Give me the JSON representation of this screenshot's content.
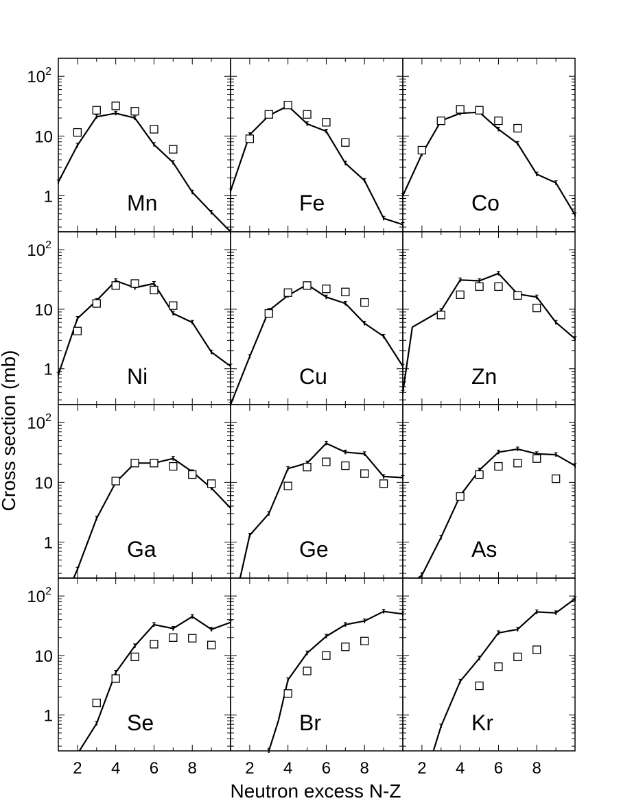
{
  "chart_data": {
    "type": "line",
    "layout": "grid 4 rows x 3 columns, shared axes",
    "xlabel": "Neutron excess N-Z",
    "ylabel": "Cross section (mb)",
    "xlim": [
      1,
      10
    ],
    "ylim": [
      0.25,
      200
    ],
    "yscale": "log",
    "x_ticks": [
      2,
      4,
      6,
      8
    ],
    "y_ticks": [
      {
        "value": 1,
        "label": "1"
      },
      {
        "value": 10,
        "label": "10"
      },
      {
        "value": 100,
        "base": "10",
        "exp": "2"
      }
    ],
    "panels": [
      {
        "element": "Mn",
        "line": [
          [
            1,
            1.7
          ],
          [
            2,
            7
          ],
          [
            3,
            21
          ],
          [
            4,
            24
          ],
          [
            5,
            20
          ],
          [
            6,
            7.2
          ],
          [
            7,
            3.6
          ],
          [
            8,
            1.15
          ],
          [
            9,
            0.53
          ],
          [
            10,
            0.25
          ]
        ],
        "squares": [
          [
            2,
            11.5
          ],
          [
            3,
            27
          ],
          [
            4,
            32
          ],
          [
            5,
            26
          ],
          [
            6,
            13
          ],
          [
            7,
            6
          ]
        ]
      },
      {
        "element": "Fe",
        "line": [
          [
            1,
            1.2
          ],
          [
            2,
            10.5
          ],
          [
            3,
            22
          ],
          [
            4,
            32
          ],
          [
            5,
            16
          ],
          [
            6,
            12
          ],
          [
            7,
            3.5
          ],
          [
            8,
            1.8
          ],
          [
            9,
            0.42
          ],
          [
            10,
            0.33
          ]
        ],
        "squares": [
          [
            2,
            9
          ],
          [
            3,
            23
          ],
          [
            4,
            33
          ],
          [
            5,
            23
          ],
          [
            6,
            17
          ],
          [
            7,
            7.8
          ]
        ]
      },
      {
        "element": "Co",
        "line": [
          [
            1,
            1.0
          ],
          [
            2,
            5
          ],
          [
            3,
            18
          ],
          [
            4,
            24
          ],
          [
            5,
            25
          ],
          [
            6,
            13
          ],
          [
            7,
            7.5
          ],
          [
            8,
            2.3
          ],
          [
            9,
            1.65
          ],
          [
            10,
            0.48
          ]
        ],
        "squares": [
          [
            2,
            5.8
          ],
          [
            3,
            18
          ],
          [
            4,
            28
          ],
          [
            5,
            27
          ],
          [
            6,
            18
          ],
          [
            7,
            13.5
          ]
        ]
      },
      {
        "element": "Ni",
        "line": [
          [
            1,
            0.8
          ],
          [
            2,
            7
          ],
          [
            3,
            14
          ],
          [
            4,
            30
          ],
          [
            5,
            23
          ],
          [
            6,
            27
          ],
          [
            7,
            8.5
          ],
          [
            8,
            6
          ],
          [
            9,
            1.9
          ],
          [
            10,
            1.1
          ]
        ],
        "squares": [
          [
            2,
            4.3
          ],
          [
            3,
            12.5
          ],
          [
            4,
            25
          ],
          [
            5,
            27
          ],
          [
            6,
            21
          ],
          [
            7,
            11.5
          ]
        ]
      },
      {
        "element": "Cu",
        "line": [
          [
            1,
            0.25
          ],
          [
            2,
            1.6
          ],
          [
            3,
            9.5
          ],
          [
            4,
            17
          ],
          [
            5,
            26
          ],
          [
            6,
            16
          ],
          [
            7,
            12.5
          ],
          [
            8,
            5.8
          ],
          [
            9,
            3.5
          ],
          [
            10,
            1.1
          ]
        ],
        "squares": [
          [
            3,
            8.5
          ],
          [
            4,
            19
          ],
          [
            5,
            25
          ],
          [
            6,
            22
          ],
          [
            7,
            19.5
          ],
          [
            8,
            13
          ]
        ]
      },
      {
        "element": "Zn",
        "line": [
          [
            1,
            0.4
          ],
          [
            1.5,
            5
          ],
          [
            3,
            9.5
          ],
          [
            4,
            31
          ],
          [
            5,
            30
          ],
          [
            6,
            40
          ],
          [
            7,
            18
          ],
          [
            8,
            16
          ],
          [
            9,
            6
          ],
          [
            10,
            3.2
          ]
        ],
        "squares": [
          [
            3,
            8
          ],
          [
            4,
            17.5
          ],
          [
            5,
            24
          ],
          [
            6,
            24
          ],
          [
            7,
            17
          ],
          [
            8,
            10.5
          ]
        ]
      },
      {
        "element": "Ga",
        "line": [
          [
            1.8,
            0.25
          ],
          [
            2,
            0.35
          ],
          [
            3,
            2.5
          ],
          [
            4,
            10
          ],
          [
            5,
            21
          ],
          [
            6,
            21
          ],
          [
            7,
            25
          ],
          [
            8,
            15
          ],
          [
            9,
            8
          ],
          [
            10,
            3.7
          ]
        ],
        "squares": [
          [
            4,
            10.5
          ],
          [
            5,
            21
          ],
          [
            6,
            21
          ],
          [
            7,
            18.5
          ],
          [
            8,
            13.5
          ],
          [
            9,
            9.5
          ]
        ]
      },
      {
        "element": "Ge",
        "line": [
          [
            1.5,
            0.25
          ],
          [
            2,
            1.3
          ],
          [
            3,
            3
          ],
          [
            4,
            17
          ],
          [
            5,
            21
          ],
          [
            6,
            45
          ],
          [
            7,
            32
          ],
          [
            8,
            30
          ],
          [
            9,
            12.5
          ],
          [
            10,
            12
          ]
        ],
        "squares": [
          [
            4,
            8.7
          ],
          [
            5,
            18
          ],
          [
            6,
            22
          ],
          [
            7,
            19
          ],
          [
            8,
            14
          ],
          [
            9,
            9.5
          ]
        ]
      },
      {
        "element": "As",
        "line": [
          [
            1.8,
            0.25
          ],
          [
            2,
            0.28
          ],
          [
            3,
            1.2
          ],
          [
            4,
            6
          ],
          [
            5,
            16
          ],
          [
            6,
            32
          ],
          [
            7,
            36
          ],
          [
            8,
            30
          ],
          [
            9,
            29
          ],
          [
            10,
            19
          ]
        ],
        "squares": [
          [
            4,
            5.8
          ],
          [
            5,
            13.5
          ],
          [
            6,
            18.5
          ],
          [
            7,
            21
          ],
          [
            8,
            25
          ],
          [
            9,
            11.5
          ]
        ]
      },
      {
        "element": "Se",
        "line": [
          [
            2.1,
            0.25
          ],
          [
            3,
            0.72
          ],
          [
            4,
            5.2
          ],
          [
            5,
            14.5
          ],
          [
            6,
            33
          ],
          [
            7,
            28.5
          ],
          [
            8,
            45
          ],
          [
            9,
            27.5
          ],
          [
            10,
            36
          ]
        ],
        "squares": [
          [
            3,
            1.6
          ],
          [
            4,
            4.1
          ],
          [
            5,
            9.5
          ],
          [
            6,
            15.5
          ],
          [
            7,
            20
          ],
          [
            8,
            19.5
          ],
          [
            9,
            15
          ]
        ]
      },
      {
        "element": "Br",
        "line": [
          [
            3,
            0.25
          ],
          [
            3.5,
            0.8
          ],
          [
            4,
            3.9
          ],
          [
            5,
            11
          ],
          [
            6,
            21
          ],
          [
            7,
            33
          ],
          [
            8,
            38
          ],
          [
            9,
            55
          ],
          [
            10,
            50
          ]
        ],
        "squares": [
          [
            4,
            2.3
          ],
          [
            5,
            5.5
          ],
          [
            6,
            10
          ],
          [
            7,
            14
          ],
          [
            8,
            17.5
          ]
        ]
      },
      {
        "element": "Kr",
        "line": [
          [
            2.6,
            0.25
          ],
          [
            3,
            0.65
          ],
          [
            4,
            3.7
          ],
          [
            5,
            9
          ],
          [
            6,
            24
          ],
          [
            7,
            27.5
          ],
          [
            8,
            54
          ],
          [
            9,
            52
          ],
          [
            10,
            90
          ]
        ],
        "squares": [
          [
            5,
            3.1
          ],
          [
            6,
            6.5
          ],
          [
            7,
            9.5
          ],
          [
            8,
            12.5
          ]
        ]
      }
    ]
  }
}
